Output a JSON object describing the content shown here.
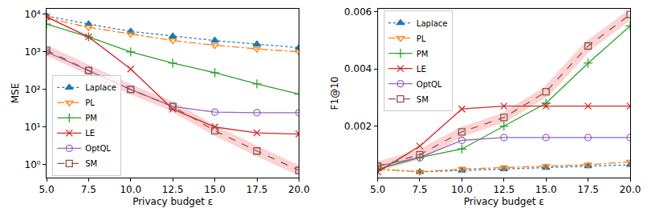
{
  "chart_data": [
    {
      "type": "line",
      "x_label": "Privacy budget ε",
      "y_label": "MSE",
      "log": "y",
      "legend": "lower left",
      "xlim": [
        5,
        20
      ],
      "xticks": [
        {
          "value": 5,
          "label": "5.0"
        },
        {
          "value": 7.5,
          "label": "7.5"
        },
        {
          "value": 10,
          "label": "10.0"
        },
        {
          "value": 12.5,
          "label": "12.5"
        },
        {
          "value": 15,
          "label": "15.0"
        },
        {
          "value": 17.5,
          "label": "17.5"
        },
        {
          "value": 20,
          "label": "20.0"
        }
      ],
      "ylim": [
        0.45,
        14000
      ],
      "yticks": [
        {
          "value": 1,
          "label": "10⁰"
        },
        {
          "value": 10,
          "label": "10¹"
        },
        {
          "value": 100,
          "label": "10²"
        },
        {
          "value": 1000,
          "label": "10³"
        },
        {
          "value": 10000,
          "label": "10⁴"
        }
      ],
      "x": [
        5,
        7.5,
        10,
        12.5,
        15,
        17.5,
        20
      ],
      "series": [
        {
          "name": "Laplace",
          "color": "#1f77b4",
          "marker": "triangle-up",
          "line_style": "dotted",
          "values": [
            9000,
            5500,
            3500,
            2600,
            2000,
            1600,
            1300
          ]
        },
        {
          "name": "PL",
          "color": "#ff7f0e",
          "marker": "triangle-down-open",
          "line_style": "dashdot",
          "values": [
            8000,
            4500,
            3000,
            2000,
            1500,
            1200,
            1000
          ]
        },
        {
          "name": "PM",
          "color": "#2ca02c",
          "marker": "plus",
          "line_style": "solid",
          "values": [
            5500,
            2500,
            1000,
            500,
            280,
            140,
            75
          ]
        },
        {
          "name": "LE",
          "color": "#d62728",
          "marker": "x",
          "line_style": "solid",
          "values": [
            8500,
            2500,
            350,
            30,
            10,
            7,
            6.5
          ]
        },
        {
          "name": "OptQL",
          "color": "#9467bd",
          "marker": "circle-open",
          "line_style": "solid",
          "values": [
            1000,
            320,
            100,
            35,
            25,
            24,
            24
          ]
        },
        {
          "name": "SM",
          "color": "#8c564b",
          "marker": "square-open",
          "line_style": "dashed",
          "values": [
            1100,
            320,
            100,
            35,
            8,
            2.3,
            0.7
          ]
        }
      ]
    },
    {
      "type": "line",
      "x_label": "Privacy budget ε",
      "y_label": "F1@10",
      "legend": "upper left",
      "xlim": [
        5,
        20
      ],
      "xticks": [
        {
          "value": 5,
          "label": "5.0"
        },
        {
          "value": 7.5,
          "label": "7.5"
        },
        {
          "value": 10,
          "label": "10.0"
        },
        {
          "value": 12.5,
          "label": "12.5"
        },
        {
          "value": 15,
          "label": "15.0"
        },
        {
          "value": 17.5,
          "label": "17.5"
        },
        {
          "value": 20,
          "label": "20.0"
        }
      ],
      "ylim": [
        0.0002,
        0.0061
      ],
      "yticks": [
        0.002,
        0.004,
        0.006
      ],
      "x": [
        5,
        7.5,
        10,
        12.5,
        15,
        17.5,
        20
      ],
      "series": [
        {
          "name": "Laplace",
          "color": "#1f77b4",
          "marker": "triangle-up",
          "line_style": "dotted",
          "values": [
            0.0005,
            0.0004,
            0.00045,
            0.0005,
            0.00055,
            0.0006,
            0.00065
          ]
        },
        {
          "name": "PL",
          "color": "#ff7f0e",
          "marker": "triangle-down-open",
          "line_style": "dashdot",
          "values": [
            0.0005,
            0.0004,
            0.0005,
            0.00055,
            0.0006,
            0.00065,
            0.00075
          ]
        },
        {
          "name": "PM",
          "color": "#2ca02c",
          "marker": "plus",
          "line_style": "solid",
          "values": [
            0.0005,
            0.0009,
            0.0012,
            0.002,
            0.0028,
            0.0042,
            0.0055
          ]
        },
        {
          "name": "LE",
          "color": "#d62728",
          "marker": "x",
          "line_style": "solid",
          "values": [
            0.0004,
            0.0013,
            0.0026,
            0.0027,
            0.0027,
            0.0027,
            0.0027
          ]
        },
        {
          "name": "OptQL",
          "color": "#9467bd",
          "marker": "circle-open",
          "line_style": "solid",
          "values": [
            0.0006,
            0.0009,
            0.0015,
            0.0016,
            0.0016,
            0.0016,
            0.0016
          ]
        },
        {
          "name": "SM",
          "color": "#8c564b",
          "marker": "square-open",
          "line_style": "dashed",
          "values": [
            0.0006,
            0.001,
            0.0018,
            0.0023,
            0.0032,
            0.0048,
            0.0059
          ]
        }
      ]
    }
  ]
}
